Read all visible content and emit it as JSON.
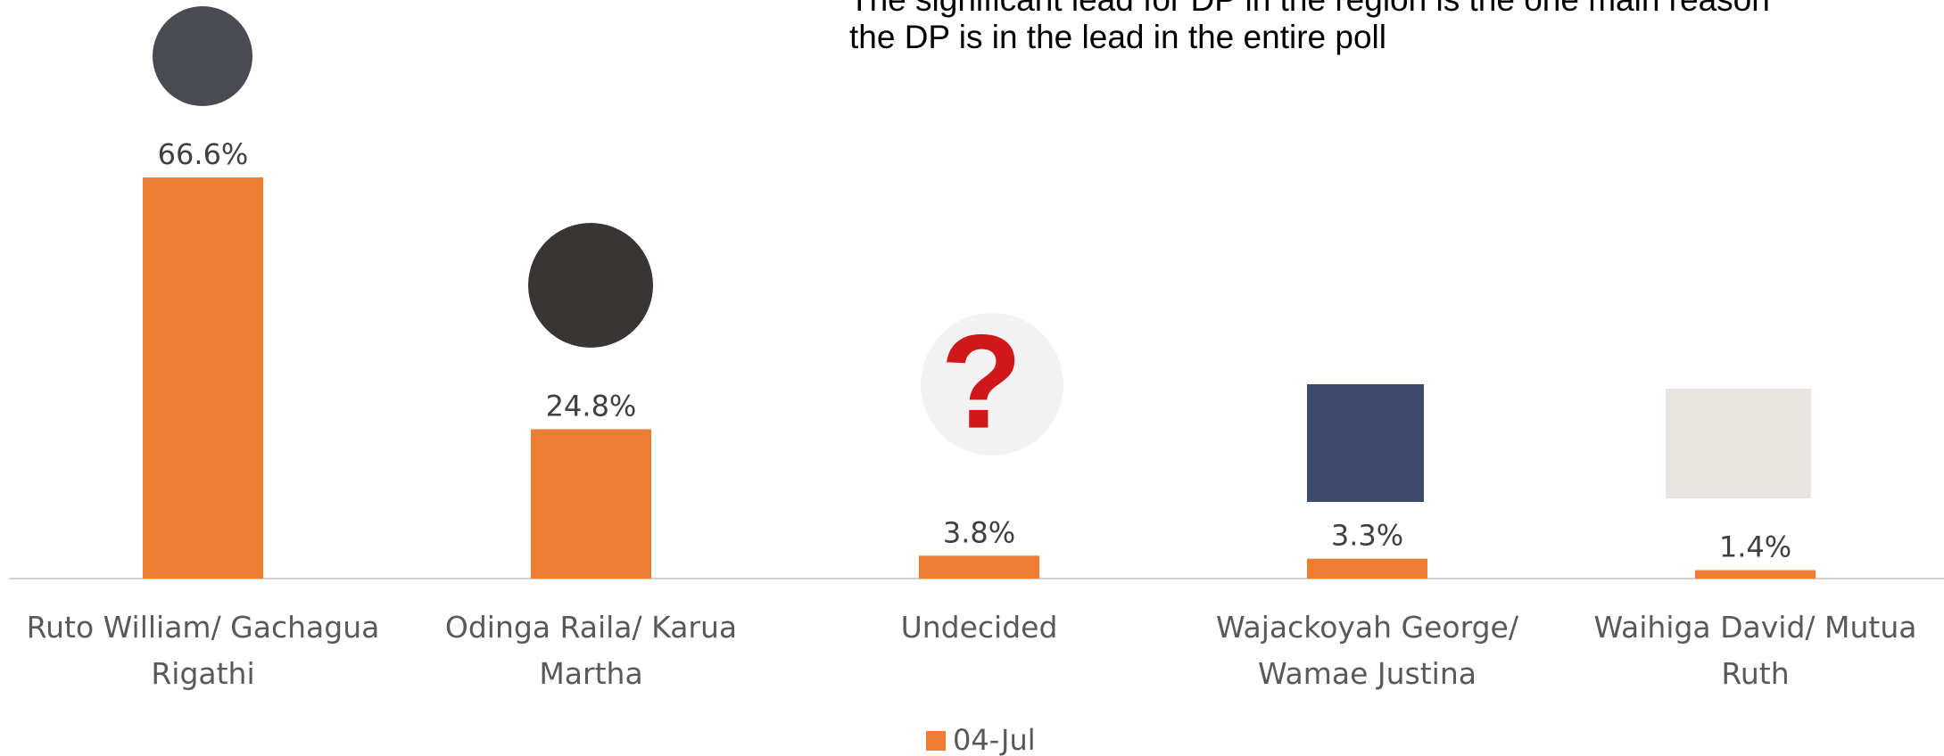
{
  "chart_data": {
    "type": "bar",
    "annotation": [
      "The significant lead for DP in the region is the one main reason",
      "the DP is in the lead in the entire poll"
    ],
    "categories": [
      "Ruto William/ Gachagua Rigathi",
      "Odinga Raila/ Karua Martha",
      "Undecided",
      "Wajackoyah George/ Wamae Justina",
      "Waihiga David/ Mutua Ruth"
    ],
    "series": [
      {
        "name": "04-Jul",
        "color": "#ed7d31",
        "values": [
          66.6,
          24.8,
          3.8,
          3.3,
          1.4
        ],
        "value_labels": [
          "66.6%",
          "24.8%",
          "3.8%",
          "3.3%",
          "1.4%"
        ]
      }
    ],
    "legend": "bottom"
  }
}
